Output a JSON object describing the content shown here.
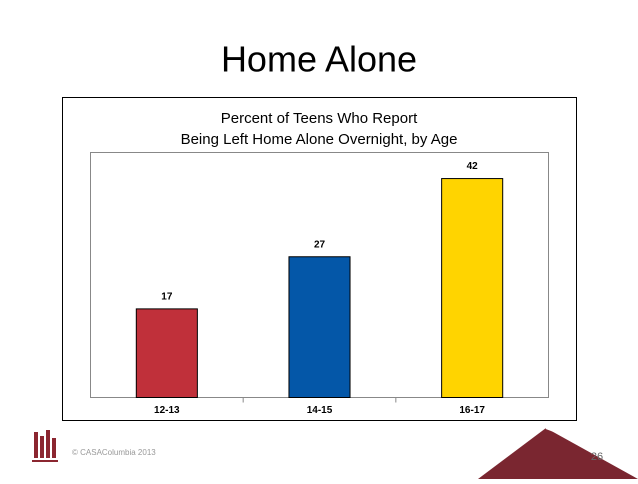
{
  "slide": {
    "title": "Home Alone",
    "footer": "© CASAColumbia 2013",
    "page_number": 26
  },
  "chart_data": {
    "type": "bar",
    "title": [
      "Percent of Teens Who Report",
      "Being Left Home Alone Overnight, by Age"
    ],
    "categories": [
      "12-13",
      "14-15",
      "16-17"
    ],
    "values": [
      17,
      27,
      42
    ],
    "colors": [
      "#c0303a",
      "#0457a8",
      "#ffd400"
    ],
    "ylim": [
      0,
      47
    ]
  }
}
